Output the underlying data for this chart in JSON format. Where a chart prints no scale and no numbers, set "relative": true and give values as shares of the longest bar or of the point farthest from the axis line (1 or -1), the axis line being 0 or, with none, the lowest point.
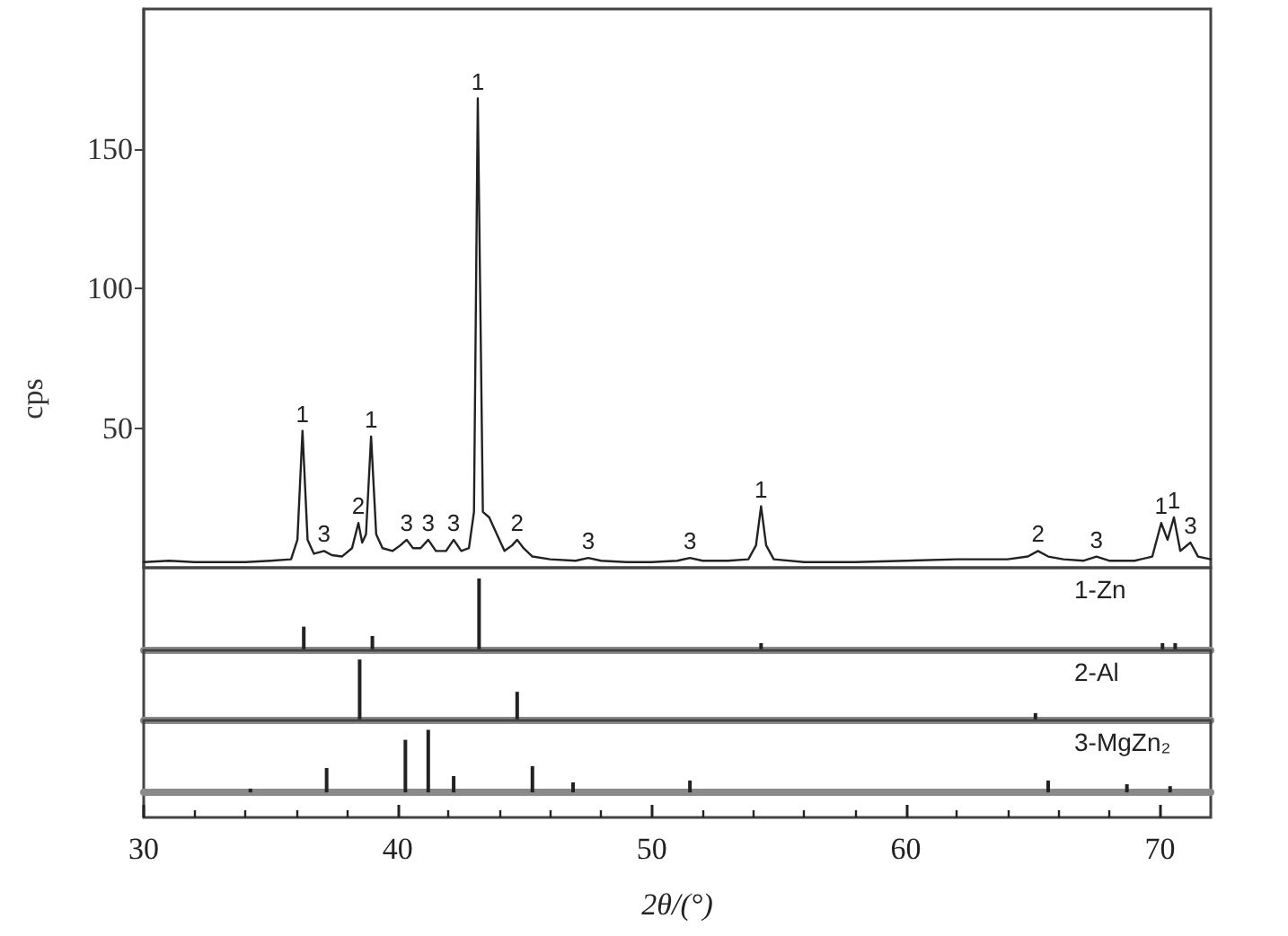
{
  "chart_data": [
    {
      "type": "line",
      "ylabel": "cps",
      "color": "#222222",
      "xlim": [
        30,
        72
      ],
      "ylim": [
        0,
        200
      ],
      "yticks": [
        50,
        100,
        150
      ],
      "tick_labels": "y",
      "x": [
        30,
        31,
        32,
        33,
        34,
        35,
        35.8,
        36.05,
        36.25,
        36.45,
        36.7,
        37.1,
        37.4,
        37.8,
        38.2,
        38.45,
        38.6,
        38.75,
        38.95,
        39.15,
        39.4,
        39.8,
        40.1,
        40.35,
        40.6,
        40.9,
        41.2,
        41.5,
        41.9,
        42.2,
        42.5,
        42.8,
        43.0,
        43.15,
        43.35,
        43.6,
        43.9,
        44.2,
        44.5,
        44.7,
        44.95,
        45.3,
        46,
        47,
        47.5,
        48,
        49,
        50,
        51,
        51.5,
        52,
        53,
        53.8,
        54.1,
        54.3,
        54.5,
        54.8,
        56,
        58,
        60,
        62,
        64,
        64.8,
        65.2,
        65.6,
        66.2,
        67,
        67.5,
        68,
        69,
        69.7,
        70.05,
        70.3,
        70.55,
        70.8,
        71.2,
        71.5,
        72
      ],
      "values": [
        2,
        2.5,
        2,
        2,
        2,
        2.5,
        3,
        10,
        49,
        10,
        5,
        6,
        4.5,
        4,
        7,
        16,
        9,
        12,
        47,
        12,
        7,
        6,
        8,
        10,
        7,
        7,
        10,
        6,
        6,
        10,
        6,
        7,
        20,
        168,
        20,
        18,
        12,
        6,
        8,
        10,
        7,
        4,
        3,
        2.5,
        3.5,
        2.5,
        2,
        2,
        2.5,
        3.5,
        2.5,
        2.5,
        3,
        8,
        22,
        8,
        3,
        2,
        2,
        2.5,
        3,
        3,
        4,
        6,
        4,
        3,
        2.5,
        4,
        2.5,
        2.5,
        4,
        16,
        10,
        18,
        6,
        9,
        4,
        3
      ],
      "annotations": [
        {
          "text": "1",
          "x": 36.25,
          "y": 49
        },
        {
          "text": "3",
          "x": 37.1,
          "y": 6
        },
        {
          "text": "2",
          "x": 38.45,
          "y": 16
        },
        {
          "text": "1",
          "x": 38.95,
          "y": 47
        },
        {
          "text": "3",
          "x": 40.35,
          "y": 10
        },
        {
          "text": "3",
          "x": 41.2,
          "y": 10
        },
        {
          "text": "3",
          "x": 42.2,
          "y": 10
        },
        {
          "text": "1",
          "x": 43.15,
          "y": 168
        },
        {
          "text": "2",
          "x": 44.7,
          "y": 10
        },
        {
          "text": "3",
          "x": 47.5,
          "y": 3.5
        },
        {
          "text": "3",
          "x": 51.5,
          "y": 3.5
        },
        {
          "text": "1",
          "x": 54.3,
          "y": 22
        },
        {
          "text": "2",
          "x": 65.2,
          "y": 6
        },
        {
          "text": "3",
          "x": 67.5,
          "y": 4
        },
        {
          "text": "1",
          "x": 70.05,
          "y": 16
        },
        {
          "text": "1",
          "x": 70.55,
          "y": 18
        },
        {
          "text": "3",
          "x": 71.2,
          "y": 9
        }
      ]
    },
    {
      "type": "bar",
      "relative": true,
      "xlim": [
        30,
        72
      ],
      "tick_labels": false,
      "x": [
        36.3,
        39.0,
        43.2,
        54.3,
        70.1,
        70.6
      ],
      "series": [
        {
          "name": "1-Zn",
          "color": "#222222",
          "values": [
            0.33,
            0.2,
            1,
            0.1,
            0.1,
            0.1
          ]
        }
      ]
    },
    {
      "type": "bar",
      "relative": true,
      "xlim": [
        30,
        72
      ],
      "tick_labels": false,
      "x": [
        38.5,
        44.7,
        65.1
      ],
      "series": [
        {
          "name": "2-Al",
          "color": "#222222",
          "values": [
            1,
            0.47,
            0.12
          ]
        }
      ]
    },
    {
      "type": "bar",
      "relative": true,
      "xlim": [
        30,
        72
      ],
      "tick_labels": "x",
      "xlabel": "2θ/(°)",
      "xticks": [
        30,
        {
          "value": 32,
          "label": null
        },
        {
          "value": 34,
          "label": null
        },
        {
          "value": 36,
          "label": null
        },
        {
          "value": 38,
          "label": null
        },
        40,
        {
          "value": 42,
          "label": null
        },
        {
          "value": 44,
          "label": null
        },
        {
          "value": 46,
          "label": null
        },
        {
          "value": 48,
          "label": null
        },
        50,
        {
          "value": 52,
          "label": null
        },
        {
          "value": 54,
          "label": null
        },
        {
          "value": 56,
          "label": null
        },
        {
          "value": 58,
          "label": null
        },
        60,
        {
          "value": 62,
          "label": null
        },
        {
          "value": 64,
          "label": null
        },
        {
          "value": 66,
          "label": null
        },
        {
          "value": 68,
          "label": null
        },
        70
      ],
      "x": [
        34.2,
        37.2,
        40.3,
        41.2,
        42.2,
        45.3,
        46.9,
        51.5,
        65.6,
        68.7,
        70.4
      ],
      "series": [
        {
          "name": "3-MgZn₂",
          "color": "#222222",
          "values": [
            0.06,
            0.39,
            0.84,
            1,
            0.26,
            0.42,
            0.16,
            0.19,
            0.19,
            0.13,
            0.1
          ]
        }
      ]
    }
  ]
}
